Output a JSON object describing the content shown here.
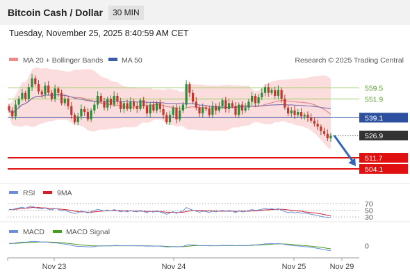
{
  "header": {
    "title": "Bitcoin Cash / Dollar",
    "interval": "30 MIN",
    "timestamp": "Tuesday, November 25, 2025 8:40:59 AM CET"
  },
  "legend": {
    "ma20": "MA 20 + Bollinger Bands",
    "ma50": "MA 50",
    "credit": "Research © 2025 Trading Central"
  },
  "rsi_legend": {
    "rsi": "RSI",
    "ma": "9MA"
  },
  "macd_legend": {
    "macd": "MACD",
    "signal": "MACD Signal"
  },
  "colors": {
    "up": "#2e8b3a",
    "down": "#c0392b",
    "ma20": "#e08080",
    "ma50": "#3b5ea6",
    "band": "#fbd7d7",
    "green_level": "#9acd62",
    "blue_level": "#2c4fa0",
    "red_level": "#e01010",
    "price_tag": "#333333",
    "arrow": "#3166b4",
    "rsi": "#6a8fd8",
    "rsi_ma": "#d02030",
    "macd": "#6a8fd8",
    "signal": "#4a9a20"
  },
  "chart_data": [
    {
      "type": "candlestick",
      "x_ticks": [
        "Nov 23",
        "Nov 24",
        "Nov 25",
        "Nov 29"
      ],
      "ylim": [
        497,
        572
      ],
      "current_price": 526.9,
      "levels": [
        {
          "label": "559.5",
          "value": 559.5,
          "style": "green"
        },
        {
          "label": "551.9",
          "value": 551.9,
          "style": "green"
        },
        {
          "label": "539.1",
          "value": 539.1,
          "style": "blue"
        },
        {
          "label": "511.7",
          "value": 511.7,
          "style": "red"
        },
        {
          "label": "504.1",
          "value": 504.1,
          "style": "red"
        }
      ],
      "closes": [
        544,
        540,
        548,
        552,
        556,
        552,
        560,
        566,
        562,
        557,
        555,
        561,
        556,
        552,
        559,
        556,
        549,
        552,
        547,
        541,
        536,
        540,
        545,
        543,
        538,
        544,
        548,
        554,
        550,
        546,
        552,
        548,
        554,
        550,
        545,
        549,
        545,
        550,
        547,
        545,
        551,
        547,
        542,
        548,
        544,
        549,
        545,
        541,
        536,
        541,
        546,
        538,
        544,
        548,
        562,
        556,
        550,
        546,
        542,
        546,
        545,
        541,
        547,
        544,
        547,
        551,
        545,
        549,
        547,
        541,
        548,
        544,
        546,
        550,
        554,
        549,
        553,
        556,
        560,
        556,
        558,
        554,
        558,
        552,
        546,
        542,
        544,
        541,
        543,
        540,
        541,
        539,
        537,
        535,
        533,
        530,
        528,
        525,
        526.9
      ],
      "forecast": {
        "from": 526.9,
        "to": 504.1
      }
    },
    {
      "type": "line",
      "name": "RSI",
      "y_ticks": [
        70,
        50,
        30
      ],
      "ylim": [
        20,
        80
      ],
      "rsi": [
        53,
        52,
        55,
        57,
        59,
        56,
        60,
        62,
        58,
        55,
        54,
        57,
        53,
        51,
        55,
        53,
        48,
        50,
        46,
        43,
        40,
        43,
        47,
        45,
        42,
        46,
        49,
        53,
        50,
        47,
        51,
        48,
        52,
        49,
        45,
        48,
        45,
        49,
        46,
        45,
        49,
        46,
        43,
        47,
        44,
        48,
        45,
        42,
        38,
        42,
        46,
        41,
        45,
        48,
        58,
        54,
        50,
        47,
        44,
        47,
        46,
        43,
        47,
        45,
        47,
        50,
        46,
        49,
        47,
        43,
        48,
        45,
        46,
        49,
        52,
        49,
        51,
        53,
        56,
        53,
        55,
        52,
        55,
        50,
        46,
        43,
        45,
        42,
        44,
        41,
        42,
        40,
        38,
        36,
        34,
        32,
        30,
        28,
        29
      ],
      "rsi_ma": [
        52,
        52,
        53,
        54,
        55,
        56,
        57,
        58,
        58,
        58,
        57,
        57,
        56,
        55,
        55,
        54,
        53,
        52,
        51,
        49,
        47,
        46,
        45,
        45,
        44,
        44,
        45,
        46,
        47,
        48,
        49,
        49,
        49,
        49,
        49,
        48,
        48,
        48,
        47,
        47,
        47,
        47,
        46,
        46,
        46,
        46,
        46,
        45,
        44,
        44,
        44,
        43,
        44,
        44,
        46,
        48,
        49,
        49,
        49,
        49,
        48,
        48,
        48,
        47,
        47,
        47,
        47,
        47,
        47,
        46,
        47,
        47,
        47,
        47,
        48,
        48,
        49,
        50,
        51,
        51,
        52,
        52,
        53,
        53,
        52,
        51,
        50,
        49,
        48,
        47,
        45,
        44,
        43,
        42,
        41,
        39,
        37,
        35,
        33
      ]
    },
    {
      "type": "line",
      "name": "MACD",
      "y_ticks": [
        0
      ],
      "ylim": [
        -7,
        5
      ],
      "macd": [
        1.5,
        1.6,
        1.9,
        2.2,
        2.4,
        2.4,
        2.6,
        2.9,
        2.9,
        2.7,
        2.5,
        2.5,
        2.3,
        2.0,
        1.9,
        1.7,
        1.3,
        1.1,
        0.7,
        0.2,
        -0.3,
        -0.5,
        -0.5,
        -0.6,
        -0.9,
        -0.9,
        -0.7,
        -0.3,
        -0.2,
        -0.3,
        -0.1,
        -0.1,
        0.1,
        0.1,
        -0.1,
        0.0,
        -0.1,
        0.0,
        -0.1,
        -0.2,
        -0.1,
        -0.2,
        -0.4,
        -0.3,
        -0.4,
        -0.3,
        -0.4,
        -0.6,
        -0.9,
        -0.9,
        -0.7,
        -0.9,
        -0.7,
        -0.5,
        0.4,
        0.6,
        0.5,
        0.3,
        0.0,
        0.0,
        0.0,
        -0.2,
        -0.1,
        -0.1,
        0.0,
        0.2,
        0.1,
        0.2,
        0.2,
        -0.1,
        0.1,
        0.0,
        0.0,
        0.2,
        0.5,
        0.5,
        0.7,
        0.9,
        1.2,
        1.3,
        1.4,
        1.3,
        1.4,
        1.2,
        0.8,
        0.4,
        0.2,
        -0.1,
        -0.2,
        -0.5,
        -0.7,
        -0.9,
        -1.2,
        -1.5,
        -1.9,
        -2.3,
        -2.7,
        -3.2,
        -3.4
      ],
      "signal": [
        1.4,
        1.5,
        1.6,
        1.7,
        1.9,
        2.0,
        2.1,
        2.3,
        2.4,
        2.5,
        2.5,
        2.5,
        2.5,
        2.4,
        2.3,
        2.2,
        2.0,
        1.8,
        1.6,
        1.3,
        1.0,
        0.7,
        0.5,
        0.3,
        0.1,
        -0.1,
        -0.2,
        -0.2,
        -0.2,
        -0.2,
        -0.2,
        -0.2,
        -0.1,
        -0.1,
        -0.1,
        -0.1,
        -0.1,
        -0.1,
        -0.1,
        -0.1,
        -0.1,
        -0.1,
        -0.2,
        -0.2,
        -0.3,
        -0.3,
        -0.3,
        -0.4,
        -0.5,
        -0.6,
        -0.6,
        -0.7,
        -0.7,
        -0.7,
        -0.5,
        -0.3,
        -0.1,
        0.0,
        0.0,
        0.0,
        0.0,
        0.0,
        0.0,
        -0.1,
        -0.1,
        0.0,
        0.0,
        0.0,
        0.1,
        0.0,
        0.0,
        0.0,
        0.0,
        0.1,
        0.2,
        0.3,
        0.4,
        0.5,
        0.7,
        0.8,
        1.0,
        1.1,
        1.2,
        1.2,
        1.1,
        1.0,
        0.8,
        0.6,
        0.4,
        0.2,
        0.0,
        -0.2,
        -0.4,
        -0.6,
        -0.9,
        -1.2,
        -1.5,
        -1.9,
        -2.2
      ]
    }
  ]
}
